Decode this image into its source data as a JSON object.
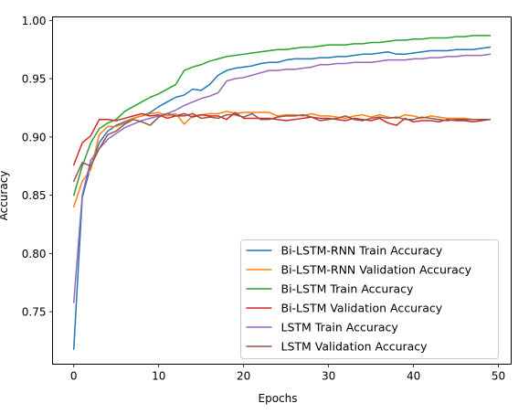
{
  "chart_data": {
    "type": "line",
    "title": "",
    "xlabel": "Epochs",
    "ylabel": "Accuracy",
    "xlim": [
      -2.5,
      51.5
    ],
    "ylim": [
      0.705,
      1.003
    ],
    "xticks": [
      0,
      10,
      20,
      30,
      40,
      50
    ],
    "yticks": [
      0.75,
      0.8,
      0.85,
      0.9,
      0.95,
      1.0
    ],
    "ytick_labels": [
      "0.75",
      "0.80",
      "0.85",
      "0.90",
      "0.95",
      "1.00"
    ],
    "grid": false,
    "legend_position": "lower-right",
    "x": [
      0,
      1,
      2,
      3,
      4,
      5,
      6,
      7,
      8,
      9,
      10,
      11,
      12,
      13,
      14,
      15,
      16,
      17,
      18,
      19,
      20,
      21,
      22,
      23,
      24,
      25,
      26,
      27,
      28,
      29,
      30,
      31,
      32,
      33,
      34,
      35,
      36,
      37,
      38,
      39,
      40,
      41,
      42,
      43,
      44,
      45,
      46,
      47,
      48,
      49
    ],
    "series": [
      {
        "name": "Bi-LSTM-RNN Train Accuracy",
        "color": "#1f77b4",
        "values": [
          0.718,
          0.848,
          0.875,
          0.895,
          0.905,
          0.91,
          0.913,
          0.916,
          0.918,
          0.921,
          0.926,
          0.93,
          0.934,
          0.936,
          0.941,
          0.94,
          0.945,
          0.953,
          0.957,
          0.959,
          0.96,
          0.961,
          0.963,
          0.964,
          0.964,
          0.966,
          0.967,
          0.967,
          0.967,
          0.968,
          0.968,
          0.969,
          0.969,
          0.97,
          0.971,
          0.971,
          0.972,
          0.973,
          0.971,
          0.971,
          0.972,
          0.973,
          0.974,
          0.974,
          0.974,
          0.975,
          0.975,
          0.975,
          0.976,
          0.977
        ]
      },
      {
        "name": "Bi-LSTM-RNN Validation Accuracy",
        "color": "#ff7f0e",
        "values": [
          0.84,
          0.862,
          0.872,
          0.902,
          0.909,
          0.909,
          0.912,
          0.916,
          0.918,
          0.92,
          0.921,
          0.918,
          0.92,
          0.911,
          0.918,
          0.919,
          0.92,
          0.92,
          0.922,
          0.92,
          0.921,
          0.921,
          0.921,
          0.921,
          0.918,
          0.919,
          0.919,
          0.918,
          0.92,
          0.918,
          0.918,
          0.917,
          0.916,
          0.918,
          0.919,
          0.917,
          0.919,
          0.917,
          0.916,
          0.919,
          0.918,
          0.916,
          0.918,
          0.917,
          0.916,
          0.916,
          0.916,
          0.915,
          0.915,
          0.915
        ]
      },
      {
        "name": "Bi-LSTM Train Accuracy",
        "color": "#2ca02c",
        "values": [
          0.85,
          0.875,
          0.895,
          0.907,
          0.912,
          0.915,
          0.922,
          0.926,
          0.93,
          0.934,
          0.937,
          0.941,
          0.945,
          0.957,
          0.96,
          0.962,
          0.965,
          0.967,
          0.969,
          0.97,
          0.971,
          0.972,
          0.973,
          0.974,
          0.975,
          0.975,
          0.976,
          0.977,
          0.977,
          0.978,
          0.979,
          0.979,
          0.979,
          0.98,
          0.98,
          0.981,
          0.981,
          0.982,
          0.983,
          0.983,
          0.984,
          0.984,
          0.985,
          0.985,
          0.985,
          0.986,
          0.986,
          0.987,
          0.987,
          0.987
        ]
      },
      {
        "name": "Bi-LSTM Validation Accuracy",
        "color": "#d62728",
        "values": [
          0.876,
          0.895,
          0.901,
          0.915,
          0.915,
          0.914,
          0.916,
          0.918,
          0.92,
          0.918,
          0.919,
          0.916,
          0.918,
          0.92,
          0.917,
          0.919,
          0.918,
          0.918,
          0.915,
          0.921,
          0.916,
          0.916,
          0.916,
          0.916,
          0.915,
          0.914,
          0.915,
          0.916,
          0.917,
          0.916,
          0.916,
          0.915,
          0.914,
          0.916,
          0.915,
          0.914,
          0.916,
          0.912,
          0.91,
          0.916,
          0.913,
          0.914,
          0.914,
          0.913,
          0.915,
          0.914,
          0.914,
          0.913,
          0.914,
          0.915
        ]
      },
      {
        "name": "LSTM Train Accuracy",
        "color": "#9467bd",
        "values": [
          0.758,
          0.85,
          0.88,
          0.89,
          0.898,
          0.903,
          0.908,
          0.911,
          0.914,
          0.916,
          0.918,
          0.92,
          0.923,
          0.927,
          0.93,
          0.933,
          0.935,
          0.938,
          0.948,
          0.95,
          0.951,
          0.953,
          0.955,
          0.957,
          0.957,
          0.958,
          0.958,
          0.959,
          0.96,
          0.962,
          0.962,
          0.963,
          0.963,
          0.964,
          0.964,
          0.964,
          0.965,
          0.966,
          0.966,
          0.966,
          0.967,
          0.967,
          0.968,
          0.968,
          0.969,
          0.969,
          0.97,
          0.97,
          0.97,
          0.971
        ]
      },
      {
        "name": "LSTM Validation Accuracy",
        "color": "#8c564b",
        "values": [
          0.862,
          0.878,
          0.875,
          0.89,
          0.902,
          0.905,
          0.911,
          0.915,
          0.913,
          0.91,
          0.917,
          0.92,
          0.918,
          0.918,
          0.92,
          0.916,
          0.917,
          0.916,
          0.919,
          0.919,
          0.917,
          0.92,
          0.915,
          0.915,
          0.917,
          0.918,
          0.918,
          0.919,
          0.917,
          0.914,
          0.915,
          0.916,
          0.918,
          0.915,
          0.914,
          0.916,
          0.917,
          0.916,
          0.917,
          0.915,
          0.915,
          0.917,
          0.916,
          0.915,
          0.914,
          0.915,
          0.915,
          0.915,
          0.915,
          0.915
        ]
      }
    ]
  }
}
